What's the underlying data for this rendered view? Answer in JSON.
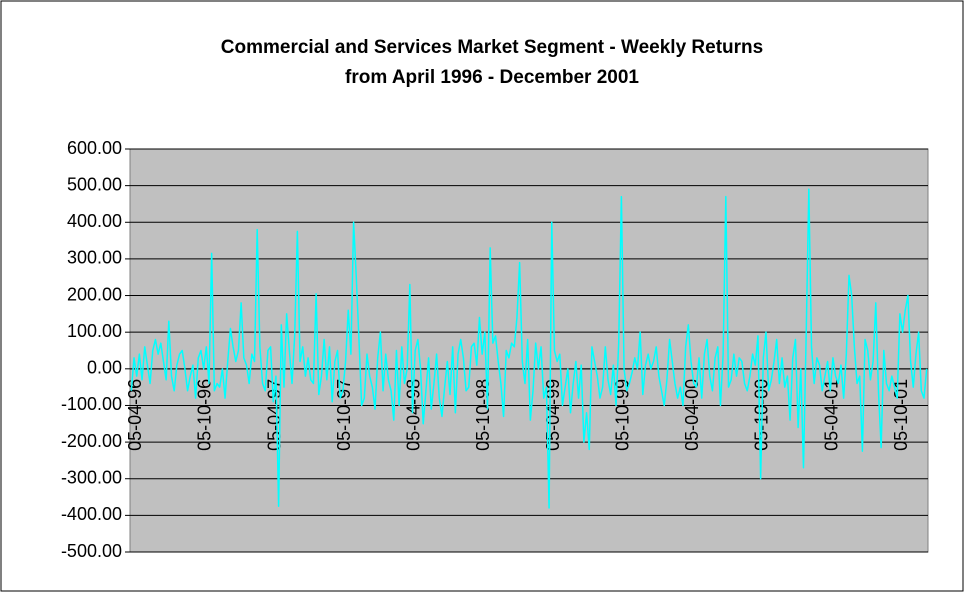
{
  "chart_data": {
    "type": "line",
    "title": [
      "Commercial and Services Market Segment - Weekly Returns",
      "from April 1996 - December 2001"
    ],
    "categories": [
      "05-04-96",
      null,
      null,
      null,
      null,
      null,
      null,
      null,
      null,
      null,
      null,
      null,
      null,
      null,
      null,
      null,
      null,
      null,
      null,
      null,
      null,
      null,
      null,
      null,
      null,
      null,
      "05-10-96",
      null,
      null,
      null,
      null,
      null,
      null,
      null,
      null,
      null,
      null,
      null,
      null,
      null,
      null,
      null,
      null,
      null,
      null,
      null,
      null,
      null,
      null,
      null,
      null,
      null,
      "05-04-97",
      null,
      null,
      null,
      null,
      null,
      null,
      null,
      null,
      null,
      null,
      null,
      null,
      null,
      null,
      null,
      null,
      null,
      null,
      null,
      null,
      null,
      null,
      null,
      null,
      null,
      "05-10-97",
      null,
      null,
      null,
      null,
      null,
      null,
      null,
      null,
      null,
      null,
      null,
      null,
      null,
      null,
      null,
      null,
      null,
      null,
      null,
      null,
      null,
      null,
      null,
      null,
      null,
      "05-04-98",
      null,
      null,
      null,
      null,
      null,
      null,
      null,
      null,
      null,
      null,
      null,
      null,
      null,
      null,
      null,
      null,
      null,
      null,
      null,
      null,
      null,
      null,
      null,
      null,
      null,
      "05-10-98",
      null,
      null,
      null,
      null,
      null,
      null,
      null,
      null,
      null,
      null,
      null,
      null,
      null,
      null,
      null,
      null,
      null,
      null,
      null,
      null,
      null,
      null,
      null,
      null,
      null,
      "05-04-99",
      null,
      null,
      null,
      null,
      null,
      null,
      null,
      null,
      null,
      null,
      null,
      null,
      null,
      null,
      null,
      null,
      null,
      null,
      null,
      null,
      null,
      null,
      null,
      null,
      null,
      "05-10-99",
      null,
      null,
      null,
      null,
      null,
      null,
      null,
      null,
      null,
      null,
      null,
      null,
      null,
      null,
      null,
      null,
      null,
      null,
      null,
      null,
      null,
      null,
      null,
      null,
      null,
      "05-04-00",
      null,
      null,
      null,
      null,
      null,
      null,
      null,
      null,
      null,
      null,
      null,
      null,
      null,
      null,
      null,
      null,
      null,
      null,
      null,
      null,
      null,
      null,
      null,
      null,
      null,
      "05-10-00",
      null,
      null,
      null,
      null,
      null,
      null,
      null,
      null,
      null,
      null,
      null,
      null,
      null,
      null,
      null,
      null,
      null,
      null,
      null,
      null,
      null,
      null,
      null,
      null,
      null,
      "05-04-01",
      null,
      null,
      null,
      null,
      null,
      null,
      null,
      null,
      null,
      null,
      null,
      null,
      null,
      null,
      null,
      null,
      null,
      null,
      null,
      null,
      null,
      null,
      null,
      null,
      null,
      "05-10-01",
      null,
      null,
      null,
      null,
      null,
      null,
      null,
      null,
      null,
      null,
      null
    ],
    "values": [
      -60,
      30,
      -20,
      40,
      -30,
      60,
      10,
      -40,
      50,
      80,
      40,
      70,
      20,
      -30,
      130,
      -20,
      -60,
      10,
      40,
      50,
      0,
      -60,
      -20,
      10,
      -80,
      30,
      50,
      0,
      60,
      -40,
      315,
      -60,
      -40,
      -50,
      0,
      -80,
      20,
      110,
      60,
      20,
      50,
      180,
      30,
      10,
      -40,
      40,
      20,
      380,
      60,
      -40,
      -60,
      50,
      60,
      -90,
      -20,
      -375,
      120,
      -50,
      150,
      50,
      -40,
      90,
      375,
      20,
      60,
      -20,
      30,
      -30,
      -40,
      205,
      -70,
      -20,
      80,
      -30,
      60,
      -90,
      20,
      50,
      -80,
      -60,
      20,
      160,
      40,
      400,
      250,
      80,
      -100,
      -80,
      40,
      -20,
      -50,
      -110,
      30,
      100,
      -60,
      40,
      -30,
      -60,
      -140,
      50,
      -100,
      60,
      -40,
      0,
      230,
      -120,
      50,
      80,
      0,
      -150,
      -60,
      30,
      -110,
      -40,
      40,
      -80,
      -130,
      -50,
      20,
      -70,
      60,
      -120,
      40,
      80,
      30,
      -60,
      -50,
      60,
      70,
      10,
      140,
      40,
      100,
      -110,
      330,
      70,
      90,
      20,
      -40,
      -130,
      50,
      30,
      70,
      60,
      140,
      290,
      20,
      -40,
      80,
      -140,
      -60,
      70,
      0,
      60,
      -80,
      -50,
      -380,
      400,
      50,
      20,
      40,
      -100,
      -50,
      0,
      -120,
      -40,
      20,
      -80,
      10,
      -200,
      -120,
      -220,
      60,
      20,
      -20,
      -80,
      -50,
      60,
      -30,
      -70,
      10,
      -100,
      70,
      470,
      0,
      -60,
      -40,
      -10,
      30,
      0,
      100,
      -70,
      10,
      40,
      0,
      20,
      60,
      -20,
      -60,
      -100,
      -30,
      80,
      20,
      -40,
      -80,
      -50,
      -100,
      60,
      120,
      20,
      -40,
      -50,
      30,
      -80,
      40,
      80,
      -20,
      -60,
      30,
      60,
      -100,
      40,
      470,
      -50,
      -30,
      40,
      -20,
      30,
      20,
      -40,
      -60,
      -20,
      40,
      10,
      90,
      -300,
      30,
      100,
      -60,
      -30,
      20,
      80,
      -40,
      30,
      -50,
      -20,
      -140,
      30,
      80,
      -160,
      0,
      -270,
      90,
      490,
      60,
      -40,
      30,
      10,
      -60,
      -20,
      20,
      -60,
      30,
      -20,
      -40,
      10,
      -80,
      40,
      255,
      200,
      60,
      -40,
      -20,
      -225,
      80,
      50,
      -30,
      20,
      180,
      -60,
      -215,
      50,
      -40,
      -60,
      -20,
      -50,
      -80,
      150,
      100,
      160,
      200,
      20,
      -50,
      40,
      100,
      -60,
      -80,
      0
    ],
    "color": "#00ffff",
    "ylim": [
      -500,
      600
    ],
    "yticks": [
      {
        "value": -500,
        "label": "-500.00"
      },
      {
        "value": -400,
        "label": "-400.00"
      },
      {
        "value": -300,
        "label": "-300.00"
      },
      {
        "value": -200,
        "label": "-200.00"
      },
      {
        "value": -100,
        "label": "-100.00"
      },
      {
        "value": 0,
        "label": "0.00"
      },
      {
        "value": 100,
        "label": "100.00"
      },
      {
        "value": 200,
        "label": "200.00"
      },
      {
        "value": 300,
        "label": "300.00"
      },
      {
        "value": 400,
        "label": "400.00"
      },
      {
        "value": 500,
        "label": "500.00"
      },
      {
        "value": 600,
        "label": "600.00"
      }
    ],
    "grid": true
  }
}
